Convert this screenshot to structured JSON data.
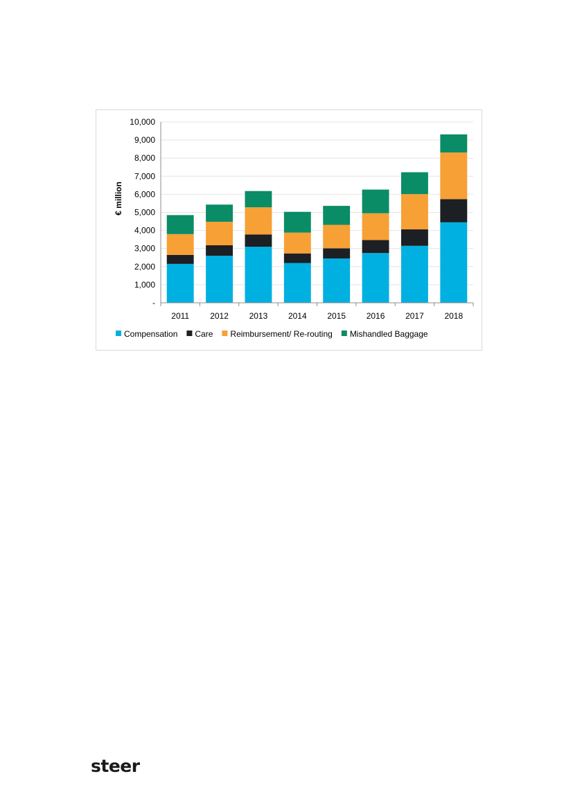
{
  "chart_data": {
    "type": "bar",
    "stacked": true,
    "categories": [
      "2011",
      "2012",
      "2013",
      "2014",
      "2015",
      "2016",
      "2017",
      "2018"
    ],
    "series": [
      {
        "name": "Compensation",
        "color": "#00b0e0",
        "values": [
          2150,
          2600,
          3100,
          2200,
          2450,
          2750,
          3150,
          4450
        ]
      },
      {
        "name": "Care",
        "color": "#1c1f24",
        "values": [
          500,
          580,
          680,
          530,
          560,
          720,
          910,
          1280
        ]
      },
      {
        "name": "Reimbursement/ Re-routing",
        "color": "#f7a035",
        "values": [
          1150,
          1300,
          1500,
          1150,
          1300,
          1480,
          1950,
          2580
        ]
      },
      {
        "name": "Mishandled Baggage",
        "color": "#0a8c66",
        "values": [
          1050,
          950,
          900,
          1150,
          1050,
          1310,
          1210,
          1000
        ]
      }
    ],
    "ylabel": "€ million",
    "xlabel": "",
    "ylim": [
      0,
      10000
    ],
    "yticks": [
      "-",
      "1,000",
      "2,000",
      "3,000",
      "4,000",
      "5,000",
      "6,000",
      "7,000",
      "8,000",
      "9,000",
      "10,000"
    ],
    "grid": true,
    "legend_position": "bottom"
  },
  "footer": {
    "logo_text": "steer"
  }
}
